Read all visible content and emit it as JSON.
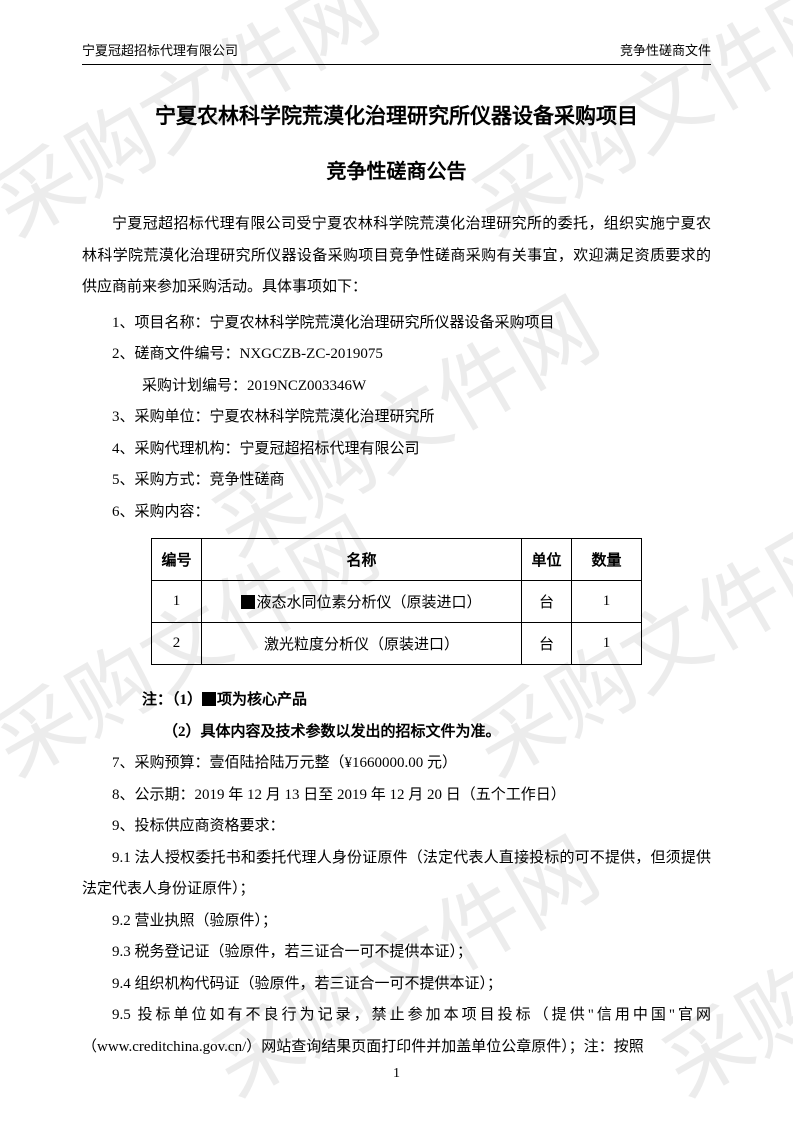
{
  "header": {
    "left": "宁夏冠超招标代理有限公司",
    "right": "竞争性磋商文件"
  },
  "title_main": "宁夏农林科学院荒漠化治理研究所仪器设备采购项目",
  "title_sub": "竞争性磋商公告",
  "intro": "宁夏冠超招标代理有限公司受宁夏农林科学院荒漠化治理研究所的委托，组织实施宁夏农林科学院荒漠化治理研究所仪器设备采购项目竞争性磋商采购有关事宜，欢迎满足资质要求的供应商前来参加采购活动。具体事项如下：",
  "items": {
    "i1": "1、项目名称：宁夏农林科学院荒漠化治理研究所仪器设备采购项目",
    "i2": "2、磋商文件编号：NXGCZB-ZC-2019075",
    "i2sub": "采购计划编号：2019NCZ003346W",
    "i3": "3、采购单位：宁夏农林科学院荒漠化治理研究所",
    "i4": "4、采购代理机构：宁夏冠超招标代理有限公司",
    "i5": "5、采购方式：竞争性磋商",
    "i6": "6、采购内容："
  },
  "table": {
    "headers": {
      "id": "编号",
      "name": "名称",
      "unit": "单位",
      "qty": "数量"
    },
    "rows": [
      {
        "id": "1",
        "name": "液态水同位素分析仪（原装进口）",
        "unit": "台",
        "qty": "1",
        "marked": true
      },
      {
        "id": "2",
        "name": "激光粒度分析仪（原装进口）",
        "unit": "台",
        "qty": "1",
        "marked": false
      }
    ]
  },
  "notes": {
    "n1_prefix": "注：（1）",
    "n1_suffix": "项为核心产品",
    "n2": "（2）具体内容及技术参数以发出的招标文件为准。"
  },
  "more": {
    "i7": "7、采购预算：壹佰陆拾陆万元整（¥1660000.00 元）",
    "i8": "8、公示期：2019 年 12 月 13 日至 2019 年 12 月 20 日（五个工作日）",
    "i9": "9、投标供应商资格要求：",
    "i91": "9.1 法人授权委托书和委托代理人身份证原件（法定代表人直接投标的可不提供，但须提供法定代表人身份证原件）；",
    "i92": "9.2 营业执照（验原件）；",
    "i93": "9.3 税务登记证（验原件，若三证合一可不提供本证）；",
    "i94": "9.4 组织机构代码证（验原件，若三证合一可不提供本证）；",
    "i95": "9.5 投标单位如有不良行为记录，禁止参加本项目投标（提供\"信用中国\"官网（www.creditchina.gov.cn/）网站查询结果页面打印件并加盖单位公章原件）；注：按照"
  },
  "watermark": "采购文件网",
  "page_number": "1"
}
